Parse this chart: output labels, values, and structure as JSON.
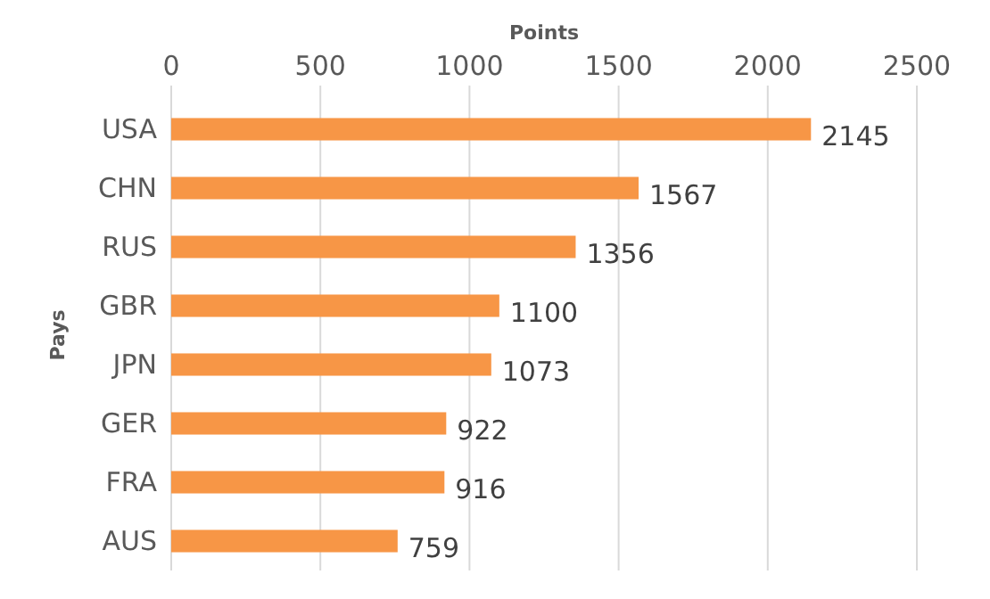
{
  "chart_data": {
    "type": "bar",
    "orientation": "horizontal",
    "xlabel": "Points",
    "ylabel": "Pays",
    "categories": [
      "USA",
      "CHN",
      "RUS",
      "GBR",
      "JPN",
      "GER",
      "FRA",
      "AUS"
    ],
    "values": [
      2145,
      1567,
      1356,
      1100,
      1073,
      922,
      916,
      759
    ],
    "color": "#f79646",
    "xlim": [
      0,
      2500
    ],
    "xticks": [
      0,
      500,
      1000,
      1500,
      2000,
      2500
    ],
    "grid": "x",
    "data_labels": true
  }
}
